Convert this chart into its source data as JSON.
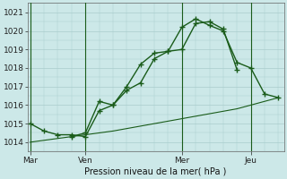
{
  "xlabel": "Pression niveau de la mer( hPa )",
  "background_color": "#cce8e8",
  "grid_color": "#aacccc",
  "line_color": "#1a5c1a",
  "vline_color": "#1a5c1a",
  "ylim": [
    1013.5,
    1021.5
  ],
  "yticks": [
    1014,
    1015,
    1016,
    1017,
    1018,
    1019,
    1020,
    1021
  ],
  "xlim": [
    -0.1,
    9.2
  ],
  "day_positions": [
    0,
    2,
    5.5,
    8.0
  ],
  "day_labels": [
    "Mar",
    "Ven",
    "Mer",
    "Jeu"
  ],
  "vline_positions": [
    0,
    2,
    5.5,
    8.0
  ],
  "line1_x": [
    0,
    0.5,
    1.0,
    1.5,
    2.0,
    2.5,
    3.0,
    3.5,
    4.0,
    4.5,
    5.0,
    5.5,
    6.0,
    6.5,
    7.0,
    7.5
  ],
  "line1_y": [
    1015.0,
    1014.6,
    1014.4,
    1014.4,
    1014.3,
    1015.7,
    1016.0,
    1016.8,
    1017.2,
    1018.5,
    1018.9,
    1019.0,
    1020.4,
    1020.5,
    1020.1,
    1017.9
  ],
  "line2_x": [
    1.5,
    2.0,
    2.5,
    3.0,
    3.5,
    4.0,
    4.5,
    5.0,
    5.5,
    6.0,
    6.5,
    7.0,
    7.5,
    8.0,
    8.5,
    9.0
  ],
  "line2_y": [
    1014.3,
    1014.5,
    1016.2,
    1016.0,
    1017.0,
    1018.2,
    1018.8,
    1018.9,
    1020.2,
    1020.65,
    1020.3,
    1020.0,
    1018.3,
    1018.0,
    1016.6,
    1016.4
  ],
  "line3_x": [
    0.0,
    1.5,
    3.0,
    4.5,
    6.0,
    7.5,
    9.0
  ],
  "line3_y": [
    1014.0,
    1014.3,
    1014.6,
    1015.0,
    1015.4,
    1015.8,
    1016.4
  ]
}
